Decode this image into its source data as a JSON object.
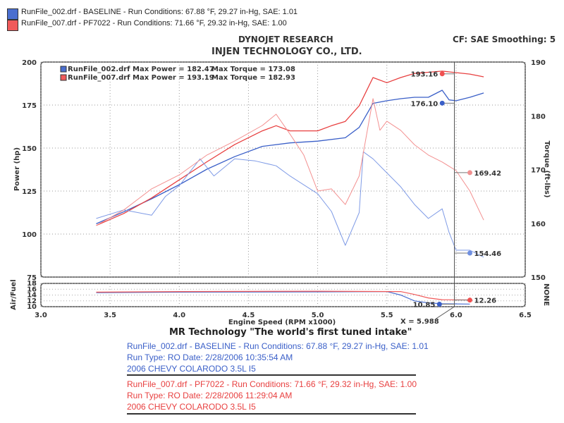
{
  "header": {
    "legend": [
      {
        "swatch": "#4a6fd0",
        "text": "RunFile_002.drf - BASELINE  -  Run Conditions: 67.88 °F, 29.27 in-Hg, SAE: 1.01"
      },
      {
        "swatch": "#f05a5a",
        "text": "RunFile_007.drf - PF7022  -  Run Conditions: 71.66 °F, 29.32 in-Hg, SAE: 1.00"
      }
    ],
    "title1": "DYNOJET RESEARCH",
    "title2": "INJEN TECHNOLOGY CO., LTD.",
    "settings": "CF: SAE  Smoothing: 5"
  },
  "chart_data": [
    {
      "type": "line",
      "title": "",
      "xlabel": "Engine Speed (RPM x1000)",
      "ylabel": "Power (hp)",
      "y2label": "Torque (ft-lbs)",
      "xlim": [
        3.0,
        6.5
      ],
      "ylim": [
        75,
        200
      ],
      "y2lim": [
        150,
        190
      ],
      "xticks": [
        "3.0",
        "3.5",
        "4.0",
        "4.5",
        "5.0",
        "5.5",
        "6.0",
        "6.5"
      ],
      "yticks": [
        "75",
        "100",
        "125",
        "150",
        "175",
        "200"
      ],
      "y2ticks": [
        "150",
        "160",
        "170",
        "180",
        "190"
      ],
      "grid": true,
      "legend_entries": [
        {
          "color": "#4a6fd0",
          "text": "RunFile_002.drf Max Power = 182.47",
          "torque": "Max Torque = 173.08"
        },
        {
          "color": "#f05a5a",
          "text": "RunFile_007.drf Max Power = 193.19",
          "torque": "Max Torque = 182.93"
        }
      ],
      "series": [
        {
          "name": "RunFile_002.drf",
          "measure": "power",
          "axis": "left",
          "color": "#3a5fc8",
          "x": [
            3.4,
            3.6,
            3.8,
            4.0,
            4.2,
            4.4,
            4.6,
            4.8,
            5.0,
            5.2,
            5.3,
            5.4,
            5.5,
            5.6,
            5.7,
            5.8,
            5.9,
            5.95,
            6.0,
            6.1,
            6.2
          ],
          "y": [
            106,
            113,
            120.5,
            128.7,
            137.7,
            145,
            151,
            153,
            154,
            156,
            162,
            176,
            177.5,
            178.7,
            179.5,
            179.5,
            183.6,
            178,
            177.5,
            179.5,
            182
          ]
        },
        {
          "name": "RunFile_007.drf",
          "measure": "power",
          "axis": "left",
          "color": "#e84040",
          "x": [
            3.4,
            3.6,
            3.8,
            4.0,
            4.2,
            4.4,
            4.6,
            4.7,
            4.8,
            5.0,
            5.1,
            5.2,
            5.3,
            5.4,
            5.5,
            5.6,
            5.7,
            5.9,
            6.1,
            6.2
          ],
          "y": [
            105,
            112,
            121,
            131.5,
            142,
            152,
            160,
            163,
            160,
            160,
            163,
            165.5,
            174.6,
            191,
            188,
            191,
            193.4,
            194.7,
            193,
            191.4
          ]
        },
        {
          "name": "RunFile_002.drf",
          "measure": "torque",
          "axis": "right",
          "color": "#7f9be6",
          "x": [
            3.4,
            3.6,
            3.8,
            3.9,
            4.0,
            4.15,
            4.25,
            4.4,
            4.55,
            4.7,
            4.8,
            5.0,
            5.1,
            5.2,
            5.3,
            5.33,
            5.4,
            5.5,
            5.6,
            5.7,
            5.8,
            5.9,
            5.95,
            6.0,
            6.1,
            6.2
          ],
          "y": [
            160.9,
            162.5,
            161.5,
            165,
            167,
            172,
            168.8,
            172,
            171.6,
            170.7,
            168.8,
            165.5,
            162.2,
            155.9,
            162,
            173.3,
            172,
            169.4,
            166.8,
            163.5,
            160.9,
            162.7,
            158.3,
            155,
            155,
            153.7
          ]
        },
        {
          "name": "RunFile_007.drf",
          "measure": "torque",
          "axis": "right",
          "color": "#f39090",
          "x": [
            3.4,
            3.6,
            3.8,
            4.0,
            4.2,
            4.4,
            4.6,
            4.7,
            4.8,
            4.9,
            5.0,
            5.1,
            5.2,
            5.3,
            5.4,
            5.45,
            5.5,
            5.6,
            5.7,
            5.8,
            5.9,
            6.0,
            6.1,
            6.2
          ],
          "y": [
            159.6,
            162.5,
            166.4,
            169,
            172.7,
            175.3,
            178.2,
            180.3,
            176.6,
            172.7,
            166,
            166.4,
            163.5,
            168.8,
            183.2,
            177.3,
            179,
            177.3,
            174.6,
            172.7,
            171.4,
            169.8,
            166,
            160.6
          ]
        }
      ],
      "markers": [
        {
          "label": "193.16",
          "x": 5.9,
          "y": 193.16,
          "axis": "left",
          "color": "#f05050",
          "side": "left"
        },
        {
          "label": "176.10",
          "x": 5.9,
          "y": 176.1,
          "axis": "left",
          "color": "#3a5fc8",
          "side": "left"
        },
        {
          "label": "169.42",
          "x": 6.1,
          "y": 169.42,
          "axis": "right",
          "color": "#f09090",
          "side": "right"
        },
        {
          "label": "154.46",
          "x": 6.1,
          "y": 154.46,
          "axis": "right",
          "color": "#6f8fe0",
          "side": "right"
        }
      ],
      "cursor": {
        "x": 5.988,
        "label": "X = 5.988"
      }
    },
    {
      "type": "line",
      "ylabel": "Air/Fuel",
      "y2label": "NONE",
      "ylim": [
        10,
        18
      ],
      "yticks": [
        "10",
        "12",
        "14",
        "16",
        "18"
      ],
      "series": [
        {
          "name": "RunFile_002.drf",
          "color": "#4a6fd0",
          "x": [
            3.4,
            4.0,
            5.0,
            5.5,
            5.6,
            5.7,
            5.8,
            5.9,
            6.1
          ],
          "y": [
            14.8,
            15,
            15.1,
            15.2,
            14,
            12,
            11.3,
            11,
            10.9
          ]
        },
        {
          "name": "RunFile_007.drf",
          "color": "#f05a5a",
          "x": [
            3.4,
            4.0,
            5.0,
            5.6,
            5.7,
            5.8,
            5.9,
            6.1
          ],
          "y": [
            15,
            15.2,
            15.3,
            15.2,
            14.2,
            13,
            12.4,
            12.3
          ]
        }
      ],
      "markers": [
        {
          "label": "10.85",
          "x": 5.88,
          "y": 10.85,
          "color": "#3a5fc8",
          "side": "left"
        },
        {
          "label": "12.26",
          "x": 6.1,
          "y": 12.26,
          "color": "#f05050",
          "side": "right"
        }
      ]
    }
  ],
  "footer": {
    "tagline": "MR Technology \"The world's first tuned intake\"",
    "runs": [
      {
        "line1": "RunFile_002.drf - BASELINE  -  Run Conditions: 67.88 °F, 29.27 in-Hg, SAE: 1.01",
        "line2": "Run Type: RO  Date: 2/28/2006 10:35:54 AM",
        "line3": "2006 CHEVY COLARODO 3.5L I5"
      },
      {
        "line1": "RunFile_007.drf - PF7022  -  Run Conditions: 71.66 °F, 29.32 in-Hg, SAE: 1.00",
        "line2": "Run Type: RO  Date: 2/28/2006 11:29:04 AM",
        "line3": "2006 CHEVY COLARODO 3.5L I5"
      }
    ]
  }
}
